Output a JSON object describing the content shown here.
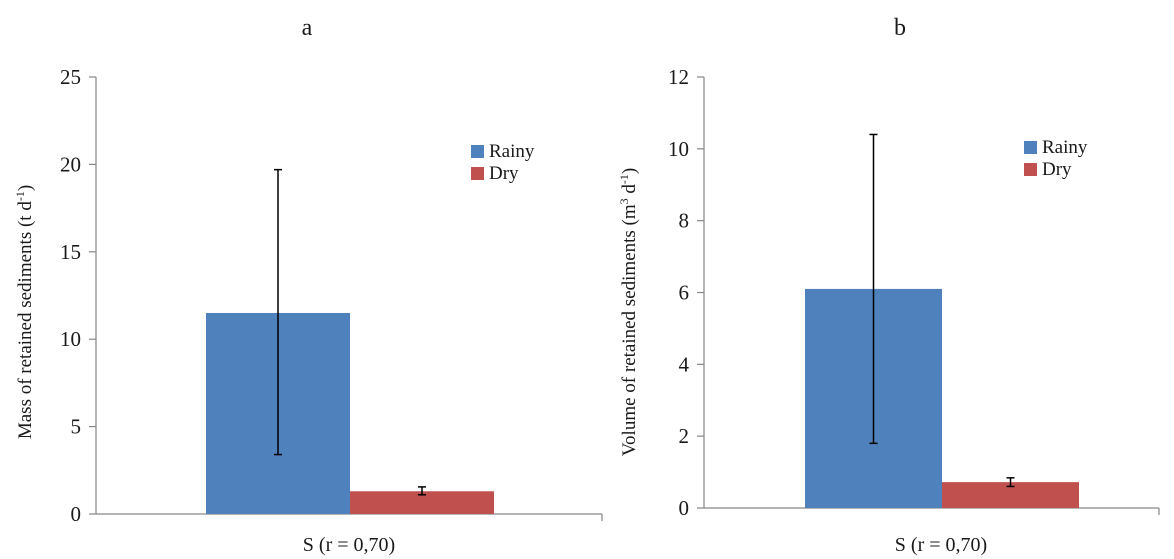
{
  "chart_data": [
    {
      "type": "bar",
      "panel_label": "a",
      "categories": [
        "S (r = 0,70)"
      ],
      "series": [
        {
          "name": "Rainy",
          "values": [
            11.5
          ],
          "error": [
            [
              3.4,
              19.7
            ]
          ],
          "color": "#4f81bd"
        },
        {
          "name": "Dry",
          "values": [
            1.3
          ],
          "error": [
            [
              1.1,
              1.55
            ]
          ],
          "color": "#c0504d"
        }
      ],
      "ylabel": "Mass of retained sediments (t d",
      "ylabel_sup": "-1",
      "ylabel_close": ")",
      "ylim": [
        0,
        25
      ],
      "yticks": [
        0,
        5,
        10,
        15,
        20,
        25
      ],
      "grid": false,
      "legend_position": "top-right"
    },
    {
      "type": "bar",
      "panel_label": "b",
      "categories": [
        "S (r = 0,70)"
      ],
      "series": [
        {
          "name": "Rainy",
          "values": [
            6.1
          ],
          "error": [
            [
              1.8,
              10.4
            ]
          ],
          "color": "#4f81bd"
        },
        {
          "name": "Dry",
          "values": [
            0.72
          ],
          "error": [
            [
              0.6,
              0.84
            ]
          ],
          "color": "#c0504d"
        }
      ],
      "ylabel": "Volume of retained sediments (m",
      "ylabel_sup": "3",
      "ylabel_mid": " d",
      "ylabel_sup2": "-1",
      "ylabel_close": ")",
      "ylim": [
        0,
        12
      ],
      "yticks": [
        0,
        2,
        4,
        6,
        8,
        10,
        12
      ],
      "grid": false,
      "legend_position": "top-right"
    }
  ]
}
